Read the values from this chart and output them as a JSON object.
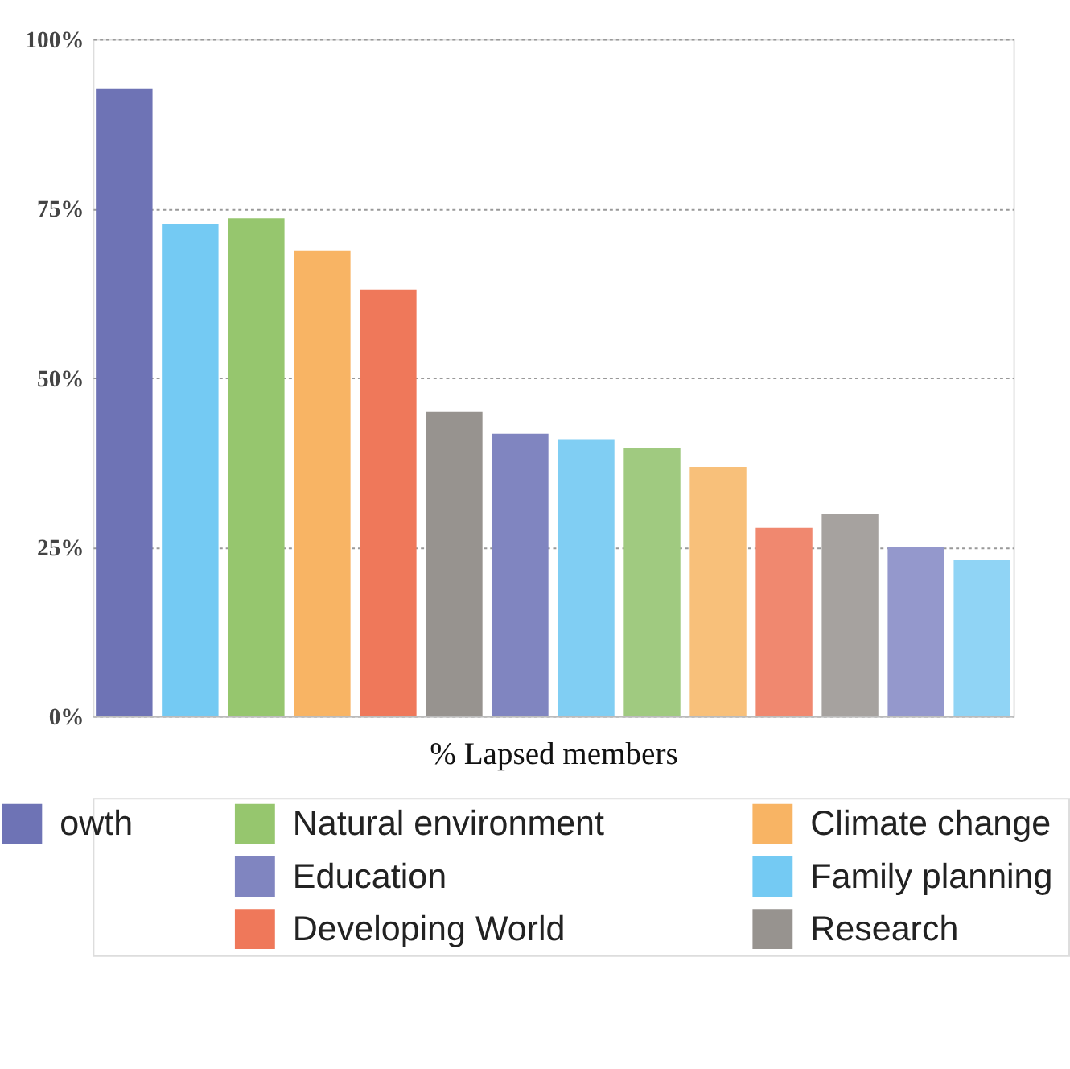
{
  "chart_data": {
    "type": "bar",
    "xlabel": "% Lapsed members",
    "categories": [
      null,
      null,
      null,
      null,
      null,
      null,
      null,
      null,
      null,
      null,
      null,
      null,
      null,
      null
    ],
    "series": [
      {
        "name": "owth",
        "color": "#6e73b5",
        "values": [
          92.7,
          null,
          null,
          null,
          null,
          null,
          null,
          null,
          null,
          null,
          null,
          null,
          null,
          null
        ],
        "colors": [
          "#6e73b5",
          null,
          null,
          null,
          null,
          null,
          null,
          null,
          null,
          null,
          null,
          null,
          null,
          null
        ]
      },
      {
        "name": "Natural environment",
        "color": "#96c66e",
        "values": [
          null,
          null,
          73.5,
          null,
          null,
          null,
          null,
          null,
          39.6,
          null,
          null,
          null,
          null,
          null
        ],
        "colors": [
          null,
          null,
          "#96c66e",
          null,
          null,
          null,
          null,
          null,
          "#a0ca80",
          null,
          null,
          null,
          null,
          null
        ]
      },
      {
        "name": "Education",
        "color": "#8085c0",
        "values": [
          null,
          null,
          null,
          null,
          null,
          null,
          41.7,
          null,
          null,
          null,
          null,
          null,
          24.9,
          null
        ],
        "colors": [
          null,
          null,
          null,
          null,
          null,
          null,
          "#8085c0",
          null,
          null,
          null,
          null,
          null,
          "#9498cc",
          null
        ]
      },
      {
        "name": "Developing World",
        "color": "#ef785a",
        "values": [
          null,
          null,
          null,
          null,
          63.0,
          null,
          null,
          null,
          null,
          null,
          27.8,
          null,
          null,
          null
        ],
        "colors": [
          null,
          null,
          null,
          null,
          "#ef785a",
          null,
          null,
          null,
          null,
          null,
          "#f0886f",
          null,
          null,
          null
        ]
      },
      {
        "name": "Climate change",
        "color": "#f8b464",
        "values": [
          null,
          null,
          null,
          68.7,
          null,
          null,
          null,
          null,
          null,
          36.8,
          null,
          null,
          null,
          null
        ],
        "colors": [
          null,
          null,
          null,
          "#f8b464",
          null,
          null,
          null,
          null,
          null,
          "#f8c07a",
          null,
          null,
          null,
          null
        ]
      },
      {
        "name": "Family planning",
        "color": "#74caf3",
        "values": [
          null,
          72.7,
          null,
          null,
          null,
          null,
          null,
          40.9,
          null,
          null,
          null,
          null,
          null,
          23.0
        ],
        "colors": [
          null,
          "#74caf3",
          null,
          null,
          null,
          null,
          null,
          "#80cef3",
          null,
          null,
          null,
          null,
          null,
          "#90d4f5"
        ]
      },
      {
        "name": "Research",
        "color": "#97938f",
        "values": [
          null,
          null,
          null,
          null,
          null,
          44.9,
          null,
          null,
          null,
          null,
          null,
          29.9,
          null,
          null
        ],
        "colors": [
          null,
          null,
          null,
          null,
          null,
          "#97938f",
          null,
          null,
          null,
          null,
          null,
          "#a6a29f",
          null,
          null
        ]
      }
    ],
    "ylim": [
      0,
      100
    ],
    "yticks": [
      {
        "value": 0,
        "label": "0%"
      },
      {
        "value": 25,
        "label": "25%"
      },
      {
        "value": 50,
        "label": "50%"
      },
      {
        "value": 75,
        "label": "75%"
      },
      {
        "value": 100,
        "label": "100%"
      }
    ],
    "grid": "y",
    "legend": "bottom"
  }
}
